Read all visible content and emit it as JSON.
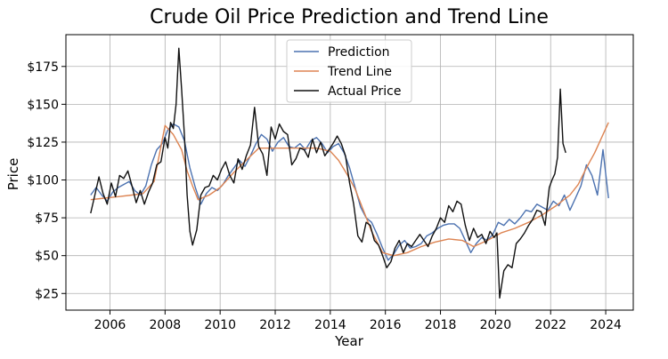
{
  "chart_data": {
    "type": "line",
    "title": "Crude Oil Price Prediction and Trend Line",
    "xlabel": "Year",
    "ylabel": "Price",
    "xlim": [
      2004.4,
      2025.0
    ],
    "ylim": [
      14,
      196
    ],
    "x_ticks": [
      2006,
      2008,
      2010,
      2012,
      2014,
      2016,
      2018,
      2020,
      2022,
      2024
    ],
    "y_ticks": [
      25,
      50,
      75,
      100,
      125,
      150,
      175
    ],
    "y_tick_labels": [
      "$25",
      "$50",
      "$75",
      "$100",
      "$125",
      "$150",
      "$175"
    ],
    "grid": true,
    "legend_position": "top-center",
    "series": [
      {
        "name": "Prediction",
        "color": "#4c72b0",
        "x": [
          2005.3,
          2005.5,
          2005.7,
          2005.9,
          2006.1,
          2006.3,
          2006.5,
          2006.7,
          2006.9,
          2007.1,
          2007.3,
          2007.5,
          2007.7,
          2007.9,
          2008.1,
          2008.3,
          2008.5,
          2008.7,
          2008.9,
          2009.1,
          2009.3,
          2009.5,
          2009.7,
          2009.9,
          2010.1,
          2010.3,
          2010.5,
          2010.7,
          2010.9,
          2011.1,
          2011.3,
          2011.5,
          2011.7,
          2011.9,
          2012.1,
          2012.3,
          2012.5,
          2012.7,
          2012.9,
          2013.1,
          2013.3,
          2013.5,
          2013.7,
          2013.9,
          2014.1,
          2014.3,
          2014.5,
          2014.7,
          2014.9,
          2015.1,
          2015.3,
          2015.5,
          2015.7,
          2015.9,
          2016.1,
          2016.3,
          2016.5,
          2016.7,
          2016.9,
          2017.1,
          2017.3,
          2017.5,
          2017.7,
          2017.9,
          2018.1,
          2018.3,
          2018.5,
          2018.7,
          2018.9,
          2019.1,
          2019.3,
          2019.5,
          2019.7,
          2019.9,
          2020.1,
          2020.3,
          2020.5,
          2020.7,
          2020.9,
          2021.1,
          2021.3,
          2021.5,
          2021.7,
          2021.9,
          2022.1,
          2022.3,
          2022.5,
          2022.7,
          2022.9,
          2023.1,
          2023.3,
          2023.5,
          2023.7,
          2023.9,
          2024.1
        ],
        "values": [
          90,
          95,
          90,
          86,
          92,
          95,
          97,
          99,
          93,
          90,
          96,
          110,
          120,
          124,
          133,
          137,
          135,
          126,
          108,
          95,
          84,
          91,
          95,
          93,
          97,
          103,
          108,
          113,
          109,
          116,
          124,
          130,
          127,
          119,
          125,
          128,
          122,
          121,
          124,
          120,
          126,
          128,
          124,
          118,
          122,
          124,
          118,
          108,
          95,
          82,
          75,
          72,
          64,
          55,
          47,
          51,
          57,
          60,
          55,
          56,
          58,
          63,
          65,
          68,
          70,
          71,
          71,
          68,
          60,
          52,
          58,
          62,
          60,
          64,
          72,
          70,
          74,
          71,
          75,
          80,
          79,
          84,
          82,
          80,
          86,
          83,
          90,
          80,
          88,
          96,
          110,
          103,
          90,
          120,
          88
        ]
      },
      {
        "name": "Trend Line",
        "color": "#dd8452",
        "x": [
          2005.3,
          2005.8,
          2006.3,
          2006.8,
          2007.2,
          2007.6,
          2008.0,
          2008.3,
          2008.6,
          2008.8,
          2009.0,
          2009.2,
          2009.6,
          2010.0,
          2010.5,
          2011.0,
          2011.4,
          2012.0,
          2012.5,
          2013.0,
          2013.5,
          2014.0,
          2014.3,
          2014.6,
          2014.9,
          2015.2,
          2015.5,
          2015.9,
          2016.3,
          2016.8,
          2017.3,
          2017.8,
          2018.3,
          2018.8,
          2019.2,
          2019.7,
          2020.2,
          2020.7,
          2021.2,
          2021.7,
          2022.2,
          2022.7,
          2023.0,
          2023.3,
          2023.6,
          2023.9,
          2024.1
        ],
        "values": [
          87,
          88,
          89,
          90,
          91,
          99,
          136,
          130,
          120,
          106,
          96,
          87,
          90,
          95,
          105,
          114,
          121,
          121,
          121,
          121,
          121,
          119,
          113,
          104,
          94,
          80,
          66,
          52,
          50,
          52,
          56,
          59,
          61,
          60,
          56,
          60,
          65,
          68,
          72,
          77,
          83,
          90,
          97,
          108,
          118,
          130,
          138
        ]
      },
      {
        "name": "Actual Price",
        "color": "#111111",
        "x": [
          2005.3,
          2005.45,
          2005.6,
          2005.75,
          2005.9,
          2006.05,
          2006.2,
          2006.35,
          2006.5,
          2006.65,
          2006.8,
          2006.95,
          2007.1,
          2007.25,
          2007.4,
          2007.55,
          2007.7,
          2007.85,
          2008.0,
          2008.1,
          2008.2,
          2008.3,
          2008.4,
          2008.5,
          2008.6,
          2008.7,
          2008.8,
          2008.9,
          2009.0,
          2009.15,
          2009.3,
          2009.45,
          2009.6,
          2009.75,
          2009.9,
          2010.05,
          2010.2,
          2010.35,
          2010.5,
          2010.65,
          2010.8,
          2010.95,
          2011.1,
          2011.25,
          2011.4,
          2011.55,
          2011.7,
          2011.85,
          2012.0,
          2012.15,
          2012.3,
          2012.45,
          2012.6,
          2012.75,
          2012.9,
          2013.05,
          2013.2,
          2013.35,
          2013.5,
          2013.65,
          2013.8,
          2013.95,
          2014.1,
          2014.25,
          2014.4,
          2014.55,
          2014.7,
          2014.85,
          2015.0,
          2015.15,
          2015.3,
          2015.45,
          2015.6,
          2015.75,
          2015.9,
          2016.05,
          2016.2,
          2016.35,
          2016.5,
          2016.65,
          2016.8,
          2016.95,
          2017.1,
          2017.25,
          2017.4,
          2017.55,
          2017.7,
          2017.85,
          2018.0,
          2018.15,
          2018.3,
          2018.45,
          2018.6,
          2018.75,
          2018.9,
          2019.05,
          2019.2,
          2019.35,
          2019.5,
          2019.65,
          2019.8,
          2019.95,
          2020.05,
          2020.15,
          2020.3,
          2020.45,
          2020.6,
          2020.75,
          2020.9,
          2021.05,
          2021.2,
          2021.35,
          2021.5,
          2021.65,
          2021.8,
          2021.95,
          2022.05,
          2022.15,
          2022.25,
          2022.35,
          2022.45,
          2022.55
        ],
        "values": [
          78,
          90,
          102,
          91,
          84,
          98,
          89,
          103,
          101,
          106,
          96,
          85,
          93,
          84,
          92,
          98,
          110,
          112,
          128,
          121,
          138,
          134,
          150,
          187,
          160,
          130,
          90,
          66,
          57,
          67,
          90,
          95,
          96,
          103,
          100,
          107,
          112,
          103,
          98,
          114,
          107,
          116,
          123,
          148,
          122,
          117,
          103,
          135,
          127,
          137,
          132,
          130,
          110,
          114,
          121,
          120,
          115,
          127,
          118,
          125,
          116,
          120,
          124,
          129,
          124,
          116,
          98,
          84,
          63,
          59,
          72,
          70,
          60,
          57,
          50,
          42,
          46,
          55,
          60,
          52,
          58,
          56,
          60,
          64,
          60,
          56,
          63,
          68,
          75,
          72,
          83,
          79,
          86,
          84,
          70,
          60,
          68,
          62,
          64,
          58,
          66,
          62,
          65,
          22,
          40,
          44,
          42,
          58,
          61,
          65,
          70,
          74,
          80,
          79,
          70,
          95,
          100,
          104,
          115,
          160,
          124,
          118
        ]
      }
    ]
  }
}
